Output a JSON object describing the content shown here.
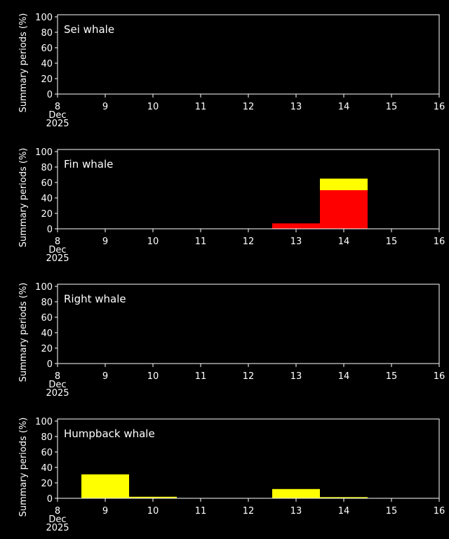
{
  "chart_data": [
    {
      "type": "bar",
      "stacked": true,
      "title": "Sei whale",
      "ylabel": "Summary periods (%)",
      "xlabel": "",
      "x_ticks": [
        "8",
        "9",
        "10",
        "11",
        "12",
        "13",
        "14",
        "15",
        "16"
      ],
      "x_sub": [
        "Dec",
        "2025"
      ],
      "y_ticks": [
        "0",
        "20",
        "40",
        "60",
        "80",
        "100"
      ],
      "xlim": [
        8,
        16
      ],
      "ylim": [
        0,
        100
      ],
      "categories": [
        "8",
        "9",
        "10",
        "11",
        "12",
        "13",
        "14",
        "15"
      ],
      "series": [
        {
          "color": "#ff0000",
          "values": [
            0,
            0,
            0,
            0,
            0,
            0,
            0,
            0
          ]
        },
        {
          "color": "#ffff00",
          "values": [
            0,
            0,
            0,
            0,
            0,
            0,
            0,
            0
          ]
        }
      ]
    },
    {
      "type": "bar",
      "stacked": true,
      "title": "Fin whale",
      "ylabel": "Summary periods (%)",
      "xlabel": "",
      "x_ticks": [
        "8",
        "9",
        "10",
        "11",
        "12",
        "13",
        "14",
        "15",
        "16"
      ],
      "x_sub": [
        "Dec",
        "2025"
      ],
      "y_ticks": [
        "0",
        "20",
        "40",
        "60",
        "80",
        "100"
      ],
      "xlim": [
        8,
        16
      ],
      "ylim": [
        0,
        100
      ],
      "categories": [
        "8",
        "9",
        "10",
        "11",
        "12",
        "13",
        "14",
        "15"
      ],
      "series": [
        {
          "color": "#ff0000",
          "values": [
            0,
            0,
            0,
            0,
            7,
            50,
            0,
            0
          ]
        },
        {
          "color": "#ffff00",
          "values": [
            0,
            0,
            0,
            0,
            0,
            15,
            0,
            0
          ]
        }
      ]
    },
    {
      "type": "bar",
      "stacked": true,
      "title": "Right whale",
      "ylabel": "Summary periods (%)",
      "xlabel": "",
      "x_ticks": [
        "8",
        "9",
        "10",
        "11",
        "12",
        "13",
        "14",
        "15",
        "16"
      ],
      "x_sub": [
        "Dec",
        "2025"
      ],
      "y_ticks": [
        "0",
        "20",
        "40",
        "60",
        "80",
        "100"
      ],
      "xlim": [
        8,
        16
      ],
      "ylim": [
        0,
        100
      ],
      "categories": [
        "8",
        "9",
        "10",
        "11",
        "12",
        "13",
        "14",
        "15"
      ],
      "series": [
        {
          "color": "#ff0000",
          "values": [
            0,
            0,
            0,
            0,
            0,
            0,
            0,
            0
          ]
        },
        {
          "color": "#ffff00",
          "values": [
            0,
            0,
            0,
            0,
            0,
            0,
            0,
            0
          ]
        }
      ]
    },
    {
      "type": "bar",
      "stacked": true,
      "title": "Humpback whale",
      "ylabel": "Summary periods (%)",
      "xlabel": "",
      "x_ticks": [
        "8",
        "9",
        "10",
        "11",
        "12",
        "13",
        "14",
        "15",
        "16"
      ],
      "x_sub": [
        "Dec",
        "2025"
      ],
      "y_ticks": [
        "0",
        "20",
        "40",
        "60",
        "80",
        "100"
      ],
      "xlim": [
        8,
        16
      ],
      "ylim": [
        0,
        100
      ],
      "categories": [
        "8",
        "9",
        "10",
        "11",
        "12",
        "13",
        "14",
        "15"
      ],
      "series": [
        {
          "color": "#ff0000",
          "values": [
            0,
            0.5,
            0,
            0,
            0,
            0,
            0,
            0
          ]
        },
        {
          "color": "#ffff00",
          "values": [
            31,
            1.5,
            0,
            0,
            12,
            1.5,
            0,
            0
          ]
        }
      ]
    }
  ]
}
